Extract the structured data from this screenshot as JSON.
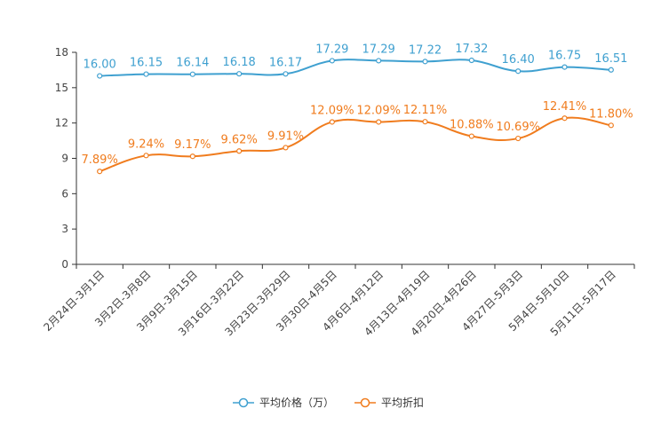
{
  "chart_data": {
    "type": "line",
    "title": "",
    "xlabel": "",
    "ylabel": "",
    "ylim": [
      0,
      18
    ],
    "yticks": [
      0,
      3,
      6,
      9,
      12,
      15,
      18
    ],
    "grid": false,
    "legend_position": "bottom-center",
    "categories": [
      "2月24日-3月1日",
      "3月2日-3月8日",
      "3月9日-3月15日",
      "3月16日-3月22日",
      "3月23日-3月29日",
      "3月30日-4月5日",
      "4月6日-4月12日",
      "4月13日-4月19日",
      "4月20日-4月26日",
      "4月27日-5月3日",
      "5月4日-5月10日",
      "5月11日-5月17日"
    ],
    "series": [
      {
        "name": "平均价格（万）",
        "color": "#3fa0d0",
        "values": [
          16.0,
          16.15,
          16.14,
          16.18,
          16.17,
          17.29,
          17.29,
          17.22,
          17.32,
          16.4,
          16.75,
          16.51
        ],
        "labels": [
          "16.00",
          "16.15",
          "16.14",
          "16.18",
          "16.17",
          "17.29",
          "17.29",
          "17.22",
          "17.32",
          "16.40",
          "16.75",
          "16.51"
        ]
      },
      {
        "name": "平均折扣",
        "color": "#f07c1e",
        "values": [
          7.89,
          9.24,
          9.17,
          9.62,
          9.91,
          12.09,
          12.09,
          12.11,
          10.88,
          10.69,
          12.41,
          11.8
        ],
        "labels": [
          "7.89%",
          "9.24%",
          "9.17%",
          "9.62%",
          "9.91%",
          "12.09%",
          "12.09%",
          "12.11%",
          "10.88%",
          "10.69%",
          "12.41%",
          "11.80%"
        ]
      }
    ]
  }
}
